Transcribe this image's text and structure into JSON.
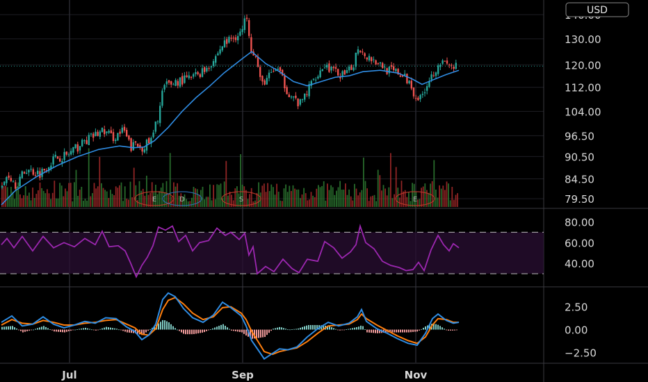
{
  "currency_badge": "USD",
  "colors": {
    "background": "#000000",
    "grid": "#1e1e24",
    "axis_line": "#3a3a40",
    "axis_text": "#d8d8d8",
    "up": "#26a69a",
    "down": "#ef5350",
    "ma": "#2f8de4",
    "rsi": "#9c27b0",
    "macd": "#2f8de4",
    "signal": "#ff7f0e",
    "last_price_line": "#26a69a"
  },
  "chart_data": [
    {
      "type": "candlestick",
      "panel": "price",
      "price_axis_labels": [
        "140.00",
        "130.00",
        "120.00",
        "112.00",
        "104.00",
        "96.50",
        "90.50",
        "84.50",
        "79.50"
      ],
      "price_axis_values": [
        140,
        130,
        120,
        112,
        104,
        96.5,
        90.5,
        84.5,
        79.5
      ],
      "scale": "log",
      "ylim": [
        77.5,
        144
      ],
      "x_labels": [
        "Jul",
        "Sep",
        "Nov"
      ],
      "last_price": 119.5,
      "close_path": [
        [
          0,
          82
        ],
        [
          8,
          86
        ],
        [
          20,
          83
        ],
        [
          35,
          87
        ],
        [
          55,
          86
        ],
        [
          75,
          90
        ],
        [
          95,
          91
        ],
        [
          120,
          95
        ],
        [
          145,
          98
        ],
        [
          160,
          96
        ],
        [
          175,
          98
        ],
        [
          185,
          93
        ],
        [
          192,
          94
        ],
        [
          200,
          93
        ],
        [
          215,
          95
        ],
        [
          225,
          103
        ],
        [
          232,
          112
        ],
        [
          250,
          114
        ],
        [
          270,
          115
        ],
        [
          290,
          118
        ],
        [
          305,
          122
        ],
        [
          318,
          128
        ],
        [
          335,
          131
        ],
        [
          345,
          133
        ],
        [
          352,
          140
        ],
        [
          358,
          127
        ],
        [
          366,
          122
        ],
        [
          372,
          113
        ],
        [
          385,
          116
        ],
        [
          395,
          119
        ],
        [
          410,
          111
        ],
        [
          420,
          108
        ],
        [
          428,
          106
        ],
        [
          440,
          111
        ],
        [
          450,
          116
        ],
        [
          465,
          120
        ],
        [
          480,
          117
        ],
        [
          495,
          116
        ],
        [
          505,
          120
        ],
        [
          512,
          127
        ],
        [
          522,
          124
        ],
        [
          540,
          121
        ],
        [
          555,
          118
        ],
        [
          570,
          117
        ],
        [
          585,
          114
        ],
        [
          595,
          109
        ],
        [
          602,
          108
        ],
        [
          610,
          113
        ],
        [
          620,
          117
        ],
        [
          628,
          121
        ],
        [
          640,
          120
        ],
        [
          650,
          119
        ],
        [
          658,
          120
        ]
      ],
      "moving_average": [
        [
          0,
          78
        ],
        [
          20,
          81.5
        ],
        [
          50,
          85
        ],
        [
          80,
          88
        ],
        [
          110,
          90.5
        ],
        [
          140,
          92.5
        ],
        [
          170,
          93.5
        ],
        [
          190,
          93
        ],
        [
          205,
          93.2
        ],
        [
          220,
          95
        ],
        [
          240,
          99
        ],
        [
          260,
          104
        ],
        [
          280,
          108.5
        ],
        [
          300,
          112.5
        ],
        [
          320,
          117
        ],
        [
          345,
          122
        ],
        [
          360,
          125
        ],
        [
          380,
          120.5
        ],
        [
          400,
          117.5
        ],
        [
          420,
          114
        ],
        [
          440,
          112.5
        ],
        [
          460,
          114
        ],
        [
          480,
          115.5
        ],
        [
          500,
          116
        ],
        [
          520,
          117.5
        ],
        [
          545,
          118
        ],
        [
          570,
          117
        ],
        [
          590,
          115
        ],
        [
          605,
          113
        ],
        [
          620,
          114.5
        ],
        [
          640,
          116.5
        ],
        [
          658,
          118
        ]
      ],
      "events": [
        {
          "label": "E",
          "x": 220
        },
        {
          "label": "D",
          "x": 260
        },
        {
          "label": "S",
          "x": 345
        },
        {
          "label": "E",
          "x": 595
        }
      ]
    },
    {
      "type": "line",
      "panel": "rsi",
      "y_labels": [
        "80.00",
        "60.00",
        "40.00"
      ],
      "y_values": [
        80,
        60,
        40
      ],
      "ylim": [
        18,
        85
      ],
      "bands": [
        70,
        30
      ],
      "values": [
        [
          0,
          58
        ],
        [
          8,
          64
        ],
        [
          18,
          55
        ],
        [
          30,
          66
        ],
        [
          45,
          52
        ],
        [
          60,
          66
        ],
        [
          75,
          55
        ],
        [
          90,
          60
        ],
        [
          105,
          56
        ],
        [
          120,
          64
        ],
        [
          135,
          58
        ],
        [
          145,
          71
        ],
        [
          155,
          56
        ],
        [
          168,
          57
        ],
        [
          178,
          52
        ],
        [
          186,
          40
        ],
        [
          194,
          27
        ],
        [
          202,
          38
        ],
        [
          210,
          46
        ],
        [
          218,
          57
        ],
        [
          226,
          75
        ],
        [
          236,
          72
        ],
        [
          246,
          76
        ],
        [
          255,
          61
        ],
        [
          265,
          67
        ],
        [
          275,
          52
        ],
        [
          285,
          60
        ],
        [
          298,
          62
        ],
        [
          310,
          74
        ],
        [
          322,
          67
        ],
        [
          330,
          70
        ],
        [
          342,
          63
        ],
        [
          350,
          69
        ],
        [
          356,
          48
        ],
        [
          362,
          56
        ],
        [
          368,
          30
        ],
        [
          380,
          37
        ],
        [
          392,
          32
        ],
        [
          405,
          44
        ],
        [
          418,
          35
        ],
        [
          428,
          31
        ],
        [
          440,
          44
        ],
        [
          455,
          42
        ],
        [
          465,
          61
        ],
        [
          478,
          55
        ],
        [
          490,
          45
        ],
        [
          502,
          51
        ],
        [
          510,
          58
        ],
        [
          516,
          76
        ],
        [
          524,
          60
        ],
        [
          536,
          54
        ],
        [
          548,
          42
        ],
        [
          560,
          38
        ],
        [
          572,
          36
        ],
        [
          582,
          33
        ],
        [
          592,
          34
        ],
        [
          600,
          41
        ],
        [
          608,
          33
        ],
        [
          618,
          53
        ],
        [
          628,
          67
        ],
        [
          636,
          58
        ],
        [
          644,
          52
        ],
        [
          650,
          59
        ],
        [
          658,
          55
        ]
      ]
    },
    {
      "type": "line+bar",
      "panel": "macd",
      "y_labels": [
        "2.50",
        "0.00",
        "−2.50"
      ],
      "y_values": [
        2.5,
        0,
        -2.5
      ],
      "ylim": [
        -3.6,
        4.6
      ],
      "macd": [
        [
          0,
          0.8
        ],
        [
          15,
          1.5
        ],
        [
          30,
          0.4
        ],
        [
          45,
          0.6
        ],
        [
          60,
          1.4
        ],
        [
          75,
          0.6
        ],
        [
          90,
          0.2
        ],
        [
          105,
          0.5
        ],
        [
          120,
          0.9
        ],
        [
          135,
          0.7
        ],
        [
          150,
          1.3
        ],
        [
          165,
          1.2
        ],
        [
          180,
          0.3
        ],
        [
          192,
          -0.2
        ],
        [
          202,
          -1.1
        ],
        [
          212,
          -0.6
        ],
        [
          222,
          0.6
        ],
        [
          232,
          3.3
        ],
        [
          240,
          4.0
        ],
        [
          250,
          3.6
        ],
        [
          262,
          2.3
        ],
        [
          275,
          1.3
        ],
        [
          290,
          0.8
        ],
        [
          305,
          1.6
        ],
        [
          318,
          3.0
        ],
        [
          330,
          2.4
        ],
        [
          345,
          1.5
        ],
        [
          352,
          0.4
        ],
        [
          360,
          -1.2
        ],
        [
          370,
          -2.3
        ],
        [
          378,
          -3.2
        ],
        [
          390,
          -2.6
        ],
        [
          400,
          -2.1
        ],
        [
          412,
          -2.2
        ],
        [
          425,
          -1.9
        ],
        [
          440,
          -0.8
        ],
        [
          455,
          0.1
        ],
        [
          470,
          0.8
        ],
        [
          485,
          0.4
        ],
        [
          500,
          0.7
        ],
        [
          512,
          1.4
        ],
        [
          518,
          2.2
        ],
        [
          525,
          0.9
        ],
        [
          540,
          0.1
        ],
        [
          555,
          -0.4
        ],
        [
          570,
          -1.0
        ],
        [
          585,
          -1.5
        ],
        [
          598,
          -1.7
        ],
        [
          610,
          -0.4
        ],
        [
          620,
          1.2
        ],
        [
          628,
          1.7
        ],
        [
          640,
          1.0
        ],
        [
          650,
          0.7
        ],
        [
          658,
          0.8
        ]
      ],
      "signal": [
        [
          0,
          0.5
        ],
        [
          15,
          1.1
        ],
        [
          30,
          0.7
        ],
        [
          45,
          0.6
        ],
        [
          60,
          1.0
        ],
        [
          75,
          0.8
        ],
        [
          90,
          0.5
        ],
        [
          105,
          0.5
        ],
        [
          120,
          0.7
        ],
        [
          135,
          0.8
        ],
        [
          150,
          1.0
        ],
        [
          165,
          1.1
        ],
        [
          180,
          0.6
        ],
        [
          192,
          0.2
        ],
        [
          202,
          -0.5
        ],
        [
          212,
          -0.6
        ],
        [
          222,
          0.1
        ],
        [
          232,
          2.2
        ],
        [
          240,
          3.2
        ],
        [
          250,
          3.5
        ],
        [
          262,
          2.8
        ],
        [
          275,
          1.8
        ],
        [
          290,
          1.1
        ],
        [
          305,
          1.4
        ],
        [
          318,
          2.4
        ],
        [
          330,
          2.5
        ],
        [
          345,
          1.8
        ],
        [
          352,
          1.1
        ],
        [
          360,
          -0.2
        ],
        [
          370,
          -1.4
        ],
        [
          378,
          -2.4
        ],
        [
          390,
          -2.7
        ],
        [
          400,
          -2.4
        ],
        [
          412,
          -2.2
        ],
        [
          425,
          -2.0
        ],
        [
          440,
          -1.3
        ],
        [
          455,
          -0.4
        ],
        [
          470,
          0.4
        ],
        [
          485,
          0.5
        ],
        [
          500,
          0.6
        ],
        [
          512,
          1.1
        ],
        [
          518,
          1.7
        ],
        [
          525,
          1.2
        ],
        [
          540,
          0.5
        ],
        [
          555,
          -0.1
        ],
        [
          570,
          -0.7
        ],
        [
          585,
          -1.2
        ],
        [
          598,
          -1.5
        ],
        [
          610,
          -0.8
        ],
        [
          620,
          0.5
        ],
        [
          628,
          1.2
        ],
        [
          640,
          1.1
        ],
        [
          650,
          0.8
        ],
        [
          658,
          0.8
        ]
      ]
    }
  ]
}
